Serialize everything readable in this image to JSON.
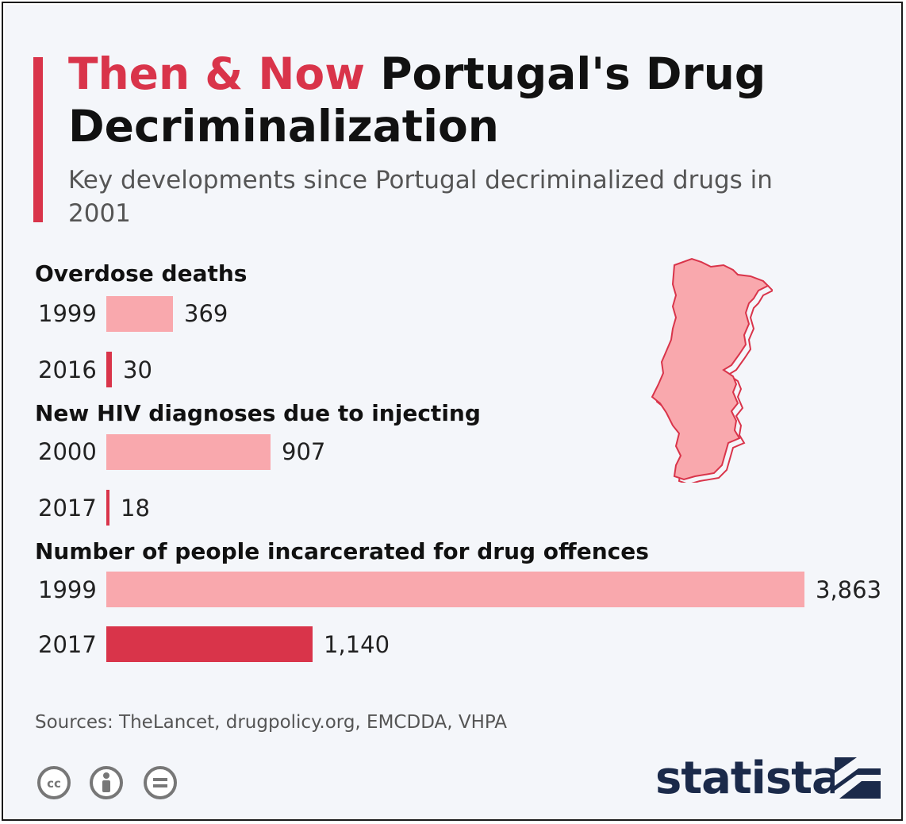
{
  "title": {
    "highlight": "Then & Now",
    "rest": "Portugal's Drug Decriminalization"
  },
  "subtitle": "Key developments since Portugal decriminalized drugs in 2001",
  "colors": {
    "accent": "#d9344a",
    "then_bar": "#f9a8ad",
    "now_bar": "#d9344a",
    "background": "#f4f6fa",
    "brand": "#1b2a4a"
  },
  "map_icon": "portugal-map-icon",
  "chart_data": [
    {
      "type": "bar",
      "orientation": "horizontal",
      "title": "Overdose deaths",
      "categories": [
        "1999",
        "2016"
      ],
      "values": [
        369,
        30
      ],
      "value_labels": [
        "369",
        "30"
      ]
    },
    {
      "type": "bar",
      "orientation": "horizontal",
      "title": "New HIV diagnoses due to injecting",
      "categories": [
        "2000",
        "2017"
      ],
      "values": [
        907,
        18
      ],
      "value_labels": [
        "907",
        "18"
      ]
    },
    {
      "type": "bar",
      "orientation": "horizontal",
      "title": "Number of people incarcerated for drug offences",
      "categories": [
        "1999",
        "2017"
      ],
      "values": [
        3863,
        1140
      ],
      "value_labels": [
        "3,863",
        "1,140"
      ]
    }
  ],
  "sources": "Sources: TheLancet, drugpolicy.org, EMCDDA, VHPA",
  "license_icons": [
    "cc-icon",
    "attribution-icon",
    "no-derivatives-icon"
  ],
  "license_labels": [
    "cc",
    "i",
    "="
  ],
  "brand": {
    "name": "statista"
  }
}
